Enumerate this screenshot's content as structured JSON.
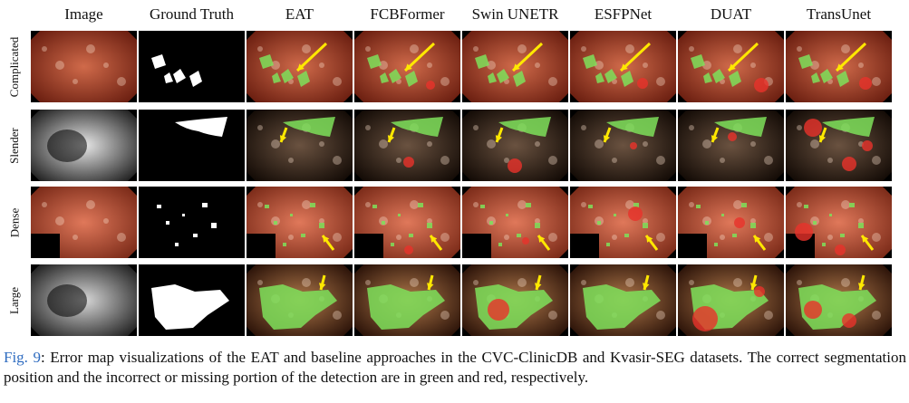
{
  "figure": {
    "columns": [
      "Image",
      "Ground Truth",
      "EAT",
      "FCBFormer",
      "Swin UNETR",
      "ESFPNet",
      "DUAT",
      "TransUnet"
    ],
    "rows": [
      "Complicated",
      "Slender",
      "Dense",
      "Large"
    ],
    "caption": {
      "label": "Fig. 9",
      "text": ": Error map visualizations of the EAT and baseline approaches in the CVC-ClinicDB and Kvasir-SEG datasets. The correct segmentation position and the incorrect or missing portion of the detection are in green and red, respectively."
    },
    "colors": {
      "correct": "#7ee05a",
      "error": "#e8322a",
      "arrow": "#ffe800",
      "caption_label": "#2f6cc0"
    }
  }
}
